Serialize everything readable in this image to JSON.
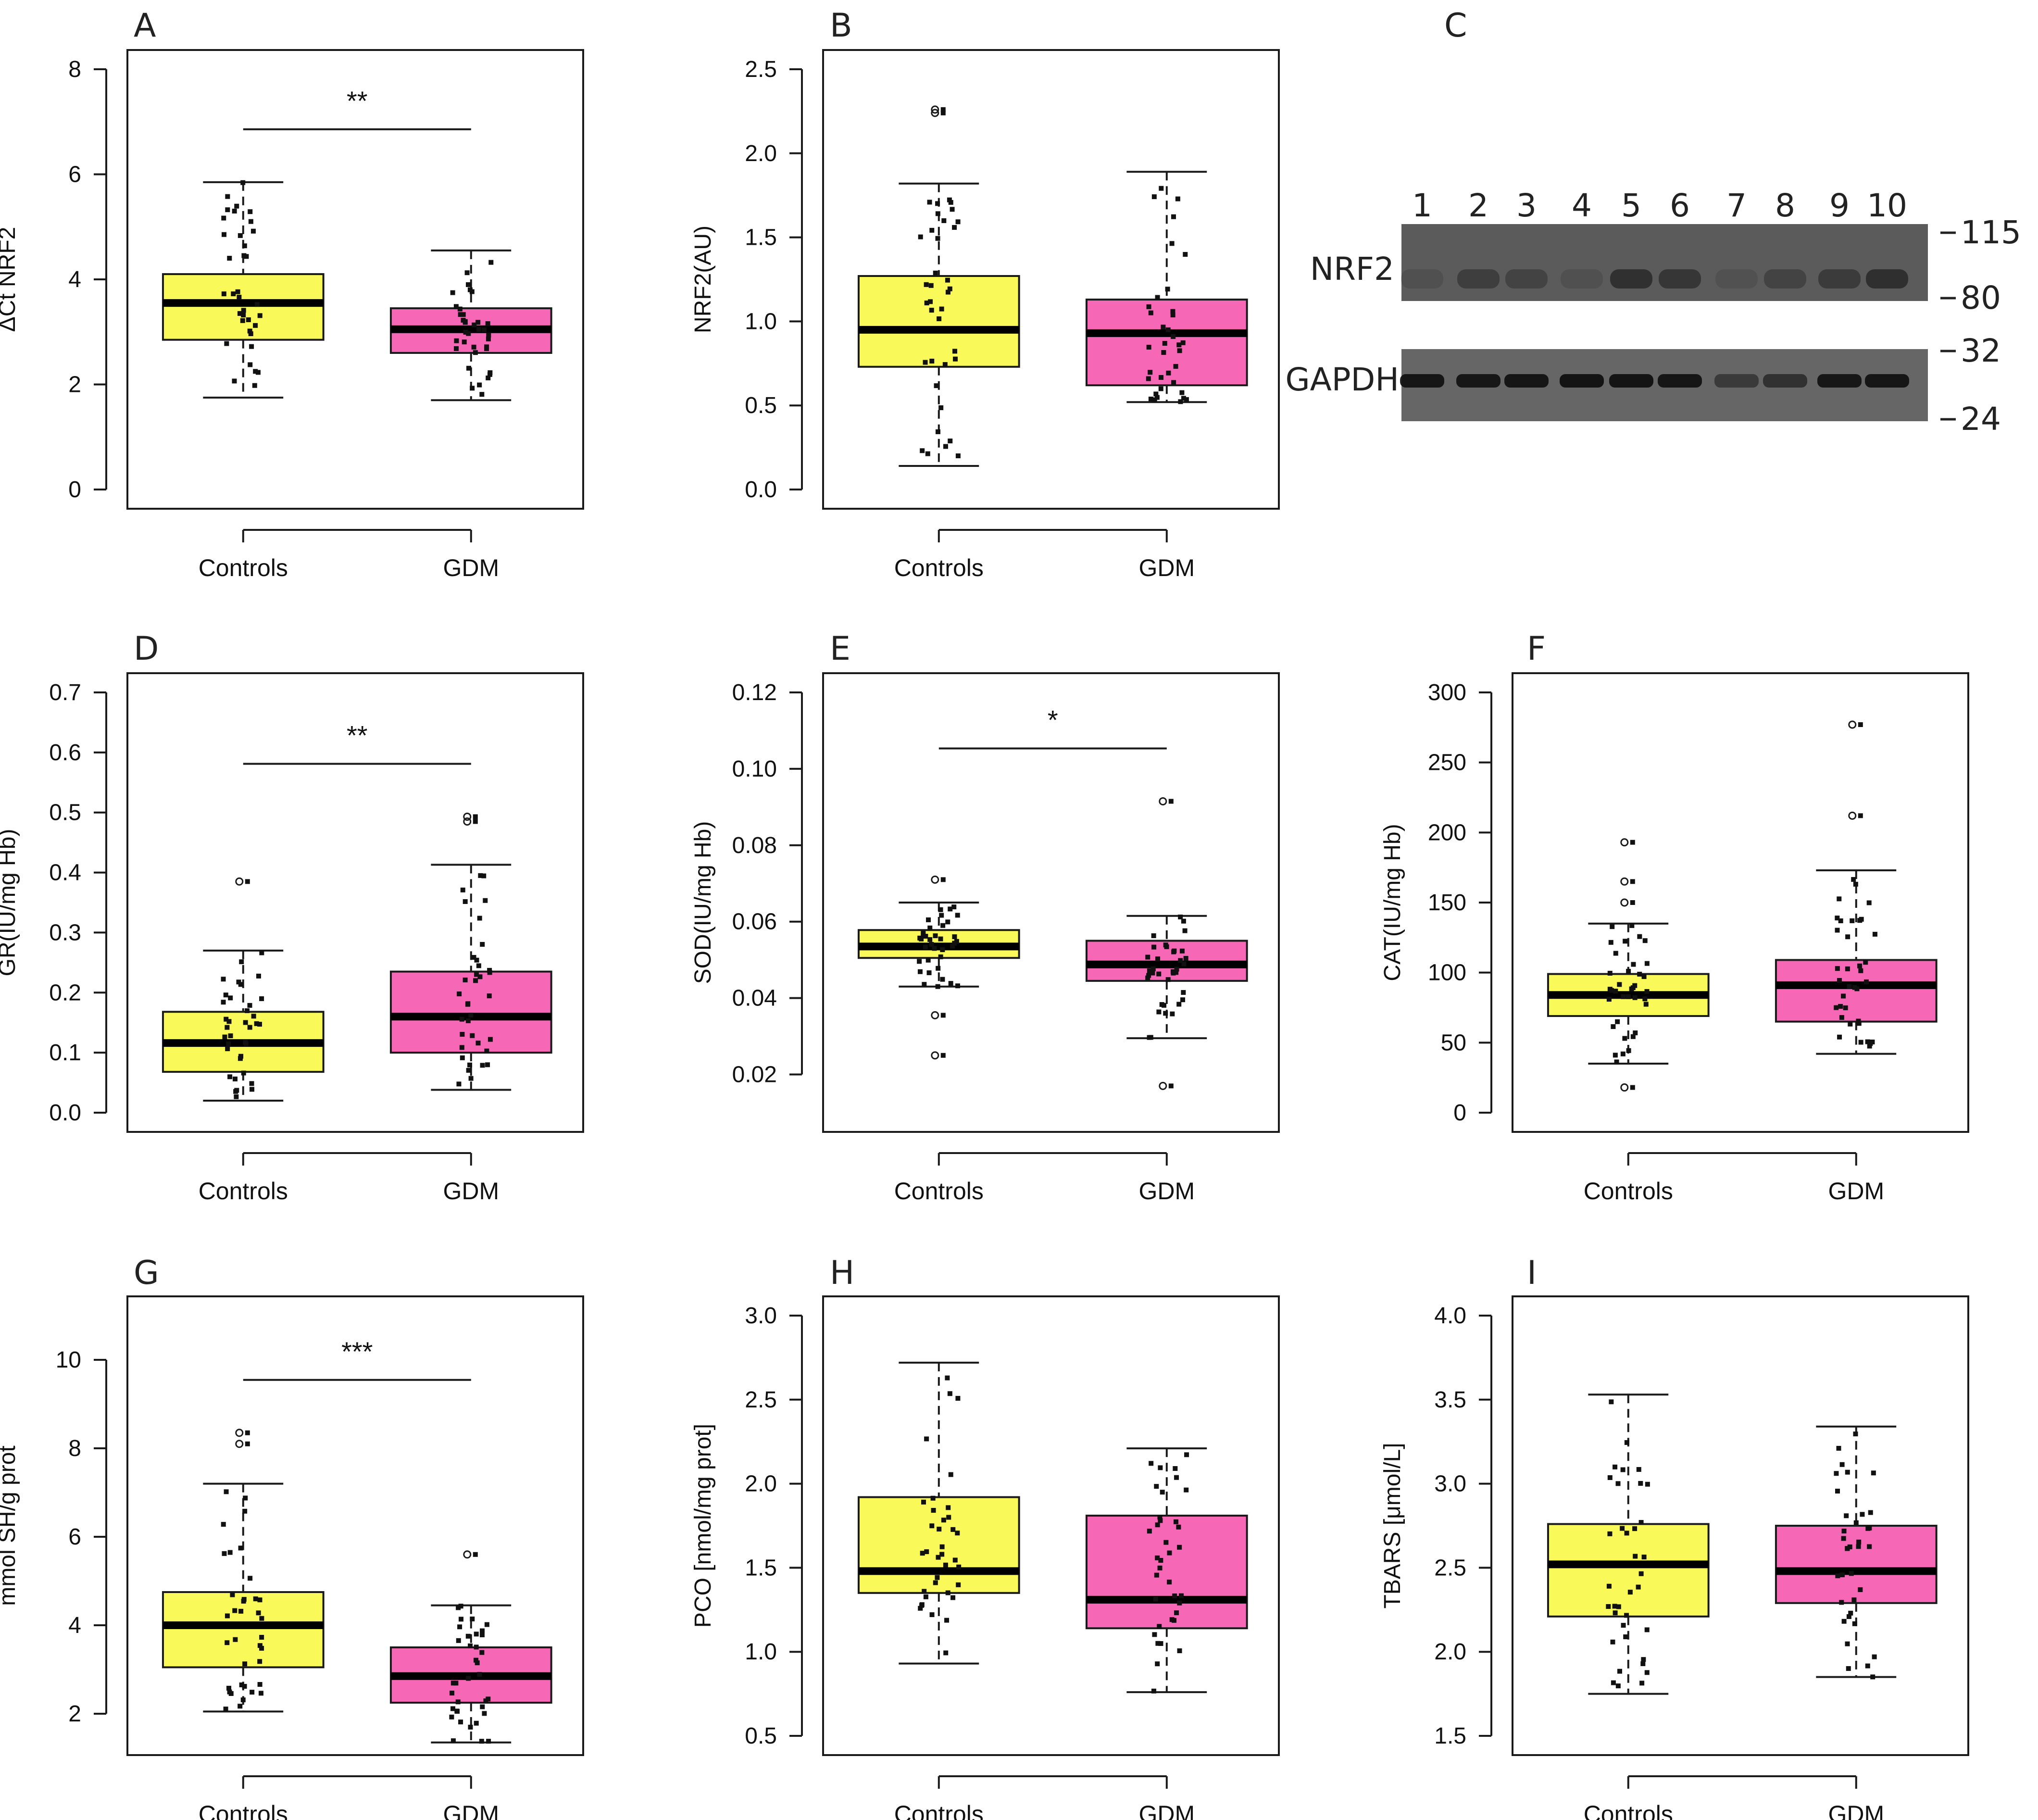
{
  "chart_data": [
    {
      "panel": "A",
      "type": "box",
      "ylabel": "ΔCt NRF2",
      "categories": [
        "Controls",
        "GDM"
      ],
      "ylim": [
        0,
        8
      ],
      "yticks": [
        "0",
        "2",
        "4",
        "6",
        "8"
      ],
      "yticks_values": [
        0,
        2,
        4,
        6,
        8
      ],
      "significance": "**",
      "boxes": [
        {
          "name": "Controls",
          "whisker_low": 1.75,
          "q1": 2.85,
          "median": 3.55,
          "q3": 4.1,
          "whisker_high": 5.85,
          "outliers": []
        },
        {
          "name": "GDM",
          "whisker_low": 1.7,
          "q1": 2.6,
          "median": 3.05,
          "q3": 3.45,
          "whisker_high": 4.55,
          "outliers": []
        }
      ]
    },
    {
      "panel": "B",
      "type": "box",
      "ylabel": "NRF2(AU)",
      "categories": [
        "Controls",
        "GDM"
      ],
      "ylim": [
        0,
        2.5
      ],
      "yticks": [
        "0.0",
        "0.5",
        "1.0",
        "1.5",
        "2.0",
        "2.5"
      ],
      "yticks_values": [
        0,
        0.5,
        1.0,
        1.5,
        2.0,
        2.5
      ],
      "significance": "",
      "boxes": [
        {
          "name": "Controls",
          "whisker_low": 0.14,
          "q1": 0.73,
          "median": 0.95,
          "q3": 1.27,
          "whisker_high": 1.82,
          "outliers": [
            2.24,
            2.26
          ]
        },
        {
          "name": "GDM",
          "whisker_low": 0.52,
          "q1": 0.62,
          "median": 0.93,
          "q3": 1.13,
          "whisker_high": 1.89,
          "outliers": []
        }
      ]
    },
    {
      "panel": "D",
      "type": "box",
      "ylabel": "GR(IU/mg Hb)",
      "categories": [
        "Controls",
        "GDM"
      ],
      "ylim": [
        0,
        0.7
      ],
      "yticks": [
        "0.0",
        "0.1",
        "0.2",
        "0.3",
        "0.4",
        "0.5",
        "0.6",
        "0.7"
      ],
      "yticks_values": [
        0,
        0.1,
        0.2,
        0.3,
        0.4,
        0.5,
        0.6,
        0.7
      ],
      "significance": "**",
      "boxes": [
        {
          "name": "Controls",
          "whisker_low": 0.02,
          "q1": 0.068,
          "median": 0.116,
          "q3": 0.168,
          "whisker_high": 0.27,
          "outliers": [
            0.385
          ]
        },
        {
          "name": "GDM",
          "whisker_low": 0.038,
          "q1": 0.1,
          "median": 0.16,
          "q3": 0.235,
          "whisker_high": 0.413,
          "outliers": [
            0.485,
            0.493
          ]
        }
      ]
    },
    {
      "panel": "E",
      "type": "box",
      "ylabel": "SOD(IU/mg Hb)",
      "categories": [
        "Controls",
        "GDM"
      ],
      "ylim": [
        0.01,
        0.12
      ],
      "yticks": [
        "0.02",
        "0.04",
        "0.06",
        "0.08",
        "0.10",
        "0.12"
      ],
      "yticks_values": [
        0.02,
        0.04,
        0.06,
        0.08,
        0.1,
        0.12
      ],
      "significance": "*",
      "boxes": [
        {
          "name": "Controls",
          "whisker_low": 0.043,
          "q1": 0.0505,
          "median": 0.0535,
          "q3": 0.0578,
          "whisker_high": 0.065,
          "outliers": [
            0.025,
            0.0355,
            0.071
          ]
        },
        {
          "name": "GDM",
          "whisker_low": 0.0295,
          "q1": 0.0445,
          "median": 0.0488,
          "q3": 0.055,
          "whisker_high": 0.0615,
          "outliers": [
            0.017,
            0.0915
          ]
        }
      ]
    },
    {
      "panel": "F",
      "type": "box",
      "ylabel": "CAT(IU/mg Hb)",
      "categories": [
        "Controls",
        "GDM"
      ],
      "ylim": [
        0,
        300
      ],
      "yticks": [
        "0",
        "50",
        "100",
        "150",
        "200",
        "250",
        "300"
      ],
      "yticks_values": [
        0,
        50,
        100,
        150,
        200,
        250,
        300
      ],
      "significance": "",
      "boxes": [
        {
          "name": "Controls",
          "whisker_low": 35,
          "q1": 69,
          "median": 84,
          "q3": 99,
          "whisker_high": 135,
          "outliers": [
            18,
            150,
            165,
            193
          ]
        },
        {
          "name": "GDM",
          "whisker_low": 42,
          "q1": 65,
          "median": 91,
          "q3": 109,
          "whisker_high": 173,
          "outliers": [
            212,
            277
          ]
        }
      ]
    },
    {
      "panel": "G",
      "type": "box",
      "ylabel": "mmol SH/g prot",
      "categories": [
        "Controls",
        "GDM"
      ],
      "ylim": [
        1.5,
        11
      ],
      "yticks": [
        "2",
        "4",
        "6",
        "8",
        "10"
      ],
      "yticks_values": [
        2,
        4,
        6,
        8,
        10
      ],
      "significance": "***",
      "boxes": [
        {
          "name": "Controls",
          "whisker_low": 2.05,
          "q1": 3.05,
          "median": 4.0,
          "q3": 4.75,
          "whisker_high": 7.2,
          "outliers": [
            8.1,
            8.35
          ]
        },
        {
          "name": "GDM",
          "whisker_low": 1.35,
          "q1": 2.25,
          "median": 2.85,
          "q3": 3.5,
          "whisker_high": 4.45,
          "outliers": [
            5.6
          ]
        }
      ]
    },
    {
      "panel": "H",
      "type": "box",
      "ylabel": "PCO [nmol/mg prot]",
      "categories": [
        "Controls",
        "GDM"
      ],
      "ylim": [
        0.5,
        3.0
      ],
      "yticks": [
        "0.5",
        "1.0",
        "1.5",
        "2.0",
        "2.5",
        "3.0"
      ],
      "yticks_values": [
        0.5,
        1.0,
        1.5,
        2.0,
        2.5,
        3.0
      ],
      "significance": "",
      "boxes": [
        {
          "name": "Controls",
          "whisker_low": 0.93,
          "q1": 1.35,
          "median": 1.48,
          "q3": 1.92,
          "whisker_high": 2.72,
          "outliers": []
        },
        {
          "name": "GDM",
          "whisker_low": 0.76,
          "q1": 1.14,
          "median": 1.31,
          "q3": 1.81,
          "whisker_high": 2.21,
          "outliers": []
        }
      ]
    },
    {
      "panel": "I",
      "type": "box",
      "ylabel": "TBARS [μmol/L]",
      "categories": [
        "Controls",
        "GDM"
      ],
      "ylim": [
        1.5,
        4.0
      ],
      "yticks": [
        "1.5",
        "2.0",
        "2.5",
        "3.0",
        "3.5",
        "4.0"
      ],
      "yticks_values": [
        1.5,
        2.0,
        2.5,
        3.0,
        3.5,
        4.0
      ],
      "significance": "",
      "boxes": [
        {
          "name": "Controls",
          "whisker_low": 1.75,
          "q1": 2.21,
          "median": 2.52,
          "q3": 2.76,
          "whisker_high": 3.53,
          "outliers": []
        },
        {
          "name": "GDM",
          "whisker_low": 1.85,
          "q1": 2.29,
          "median": 2.48,
          "q3": 2.75,
          "whisker_high": 3.34,
          "outliers": []
        }
      ]
    }
  ],
  "colors": {
    "controls_box": "#f9fa5a",
    "gdm_box": "#f668b6",
    "axis": "#1a1a1a",
    "points": "#111111",
    "blot_bg": "#5b5b5b",
    "blot_band": "#262626"
  },
  "blot": {
    "panel": "C",
    "lanes": [
      "1",
      "2",
      "3",
      "4",
      "5",
      "6",
      "7",
      "8",
      "9",
      "10"
    ],
    "rows": [
      {
        "label": "NRF2",
        "intensity": [
          0.2,
          0.55,
          0.45,
          0.2,
          0.8,
          0.7,
          0.18,
          0.45,
          0.6,
          0.82
        ]
      },
      {
        "label": "GAPDH",
        "intensity": [
          0.9,
          0.88,
          0.9,
          0.92,
          0.92,
          0.9,
          0.5,
          0.6,
          0.88,
          0.9
        ]
      }
    ],
    "markers": [
      "115",
      "80",
      "32",
      "24"
    ]
  }
}
